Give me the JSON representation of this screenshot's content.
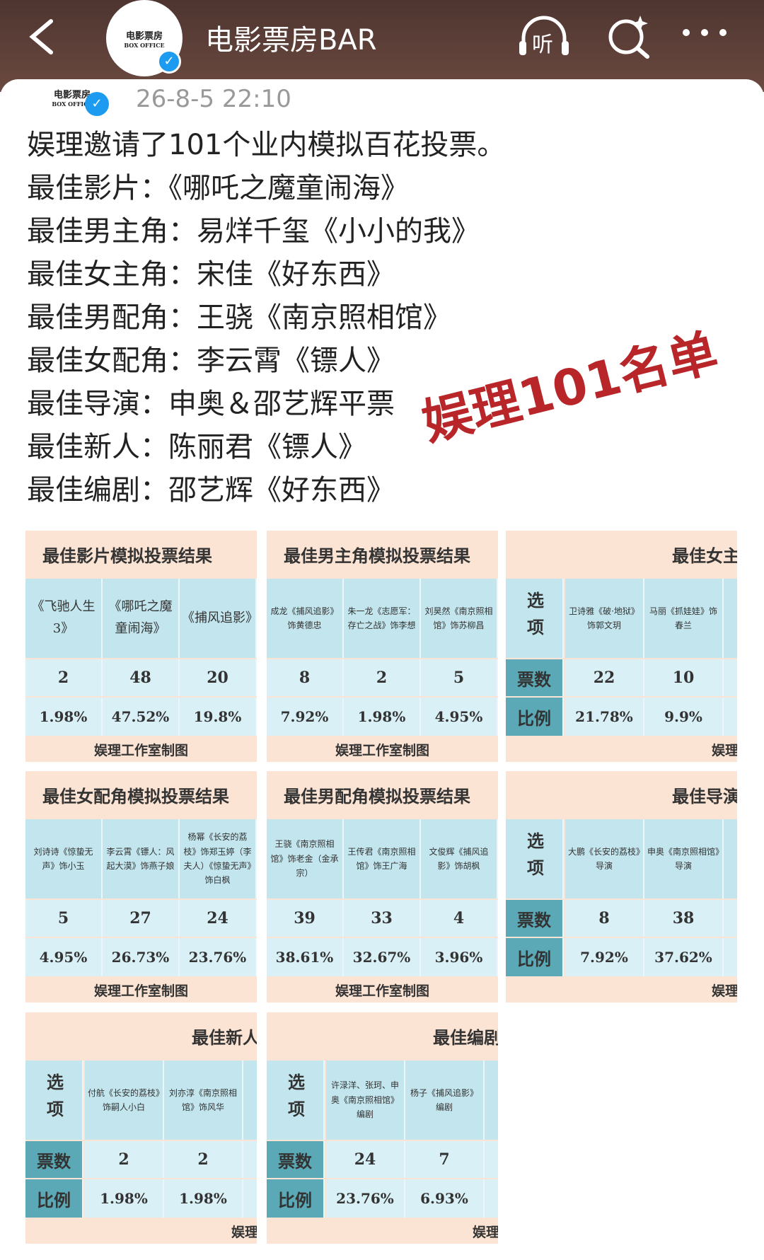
{
  "header": {
    "account_name": "电影票房BAR",
    "listen": "听",
    "logo": {
      "name": "电影票房",
      "sub": "BOX OFFICE"
    }
  },
  "post": {
    "logo": {
      "name": "电影票房",
      "sub": "BOX OFFICE"
    },
    "date": "26-8-5 22:10",
    "lines": [
      "娱理邀请了101个业内模拟百花投票。",
      "最佳影片：《哪吒之魔童闹海》",
      "最佳男主角：易烊千玺《小小的我》",
      "最佳女主角：宋佳《好东西》",
      "最佳男配角：王骁《南京照相馆》",
      "最佳女配角：李云霄《镖人》",
      "最佳导演：申奥＆邵艺辉平票",
      "最佳新人：陈丽君《镖人》",
      "最佳编剧：邵艺辉《好东西》"
    ],
    "stamp": "娱理101名单"
  },
  "tables": [
    {
      "title": "最佳影片模拟投票结果",
      "columns": [
        "《飞驰人生3》",
        "《哪吒之魔童闹海》",
        "《捕风追影》"
      ],
      "votes": [
        2,
        48,
        20
      ],
      "ratios": [
        "1.98%",
        "47.52%",
        "19.8%"
      ],
      "footer": "娱理工作室制图"
    },
    {
      "title": "最佳男主角模拟投票结果",
      "columns": [
        "成龙《捕风追影》饰黄德忠",
        "朱一龙《志愿军：存亡之战》饰李想",
        "刘昊然《南京照相馆》饰苏柳昌"
      ],
      "votes": [
        8,
        2,
        5
      ],
      "ratios": [
        "7.92%",
        "1.98%",
        "4.95%"
      ],
      "footer": "娱理工作室制图"
    },
    {
      "title": "最佳女主",
      "row_labels": [
        "选项",
        "票数",
        "比例"
      ],
      "columns": [
        "卫诗雅《破·地狱》饰郭文玥",
        "马丽《抓娃娃》饰春兰"
      ],
      "votes": [
        22,
        10
      ],
      "ratios": [
        "21.78%",
        "9.9%"
      ],
      "footer": "娱理"
    },
    {
      "title": "最佳女配角模拟投票结果",
      "columns": [
        "刘诗诗《惊蛰无声》饰小玉",
        "李云霄《镖人：风起大漠》饰燕子娘",
        "杨幂《长安的荔枝》饰郑玉婷（李夫人）《惊蛰无声》饰白枫"
      ],
      "votes": [
        5,
        27,
        24
      ],
      "ratios": [
        "4.95%",
        "26.73%",
        "23.76%"
      ],
      "footer": "娱理工作室制图"
    },
    {
      "title": "最佳男配角模拟投票结果",
      "columns": [
        "王骁《南京照相馆》饰老金（金承宗）",
        "王传君《南京照相馆》饰王广海",
        "文俊辉《捕风追影》饰胡枫"
      ],
      "votes": [
        39,
        33,
        4
      ],
      "ratios": [
        "38.61%",
        "32.67%",
        "3.96%"
      ],
      "footer": "娱理工作室制图"
    },
    {
      "title": "最佳导演",
      "row_labels": [
        "选项",
        "票数",
        "比例"
      ],
      "columns": [
        "大鹏《长安的荔枝》导演",
        "申奥《南京照相馆》导演"
      ],
      "votes": [
        8,
        38
      ],
      "ratios": [
        "7.92%",
        "37.62%"
      ],
      "footer": "娱理"
    },
    {
      "title": "最佳新人",
      "row_labels": [
        "选项",
        "票数",
        "比例"
      ],
      "columns": [
        "付航《长安的荔枝》饰嗣人小白",
        "刘亦淳《南京照相馆》饰风华"
      ],
      "votes": [
        2,
        2
      ],
      "ratios": [
        "1.98%",
        "1.98%"
      ],
      "footer": "娱理"
    },
    {
      "title": "最佳编剧",
      "row_labels": [
        "选项",
        "票数",
        "比例"
      ],
      "columns": [
        "许渌洋、张珂、申奥《南京照相馆》编剧",
        "杨子《捕风追影》编剧"
      ],
      "votes": [
        24,
        7
      ],
      "ratios": [
        "23.76%",
        "6.93%"
      ],
      "footer": "娱理"
    }
  ]
}
